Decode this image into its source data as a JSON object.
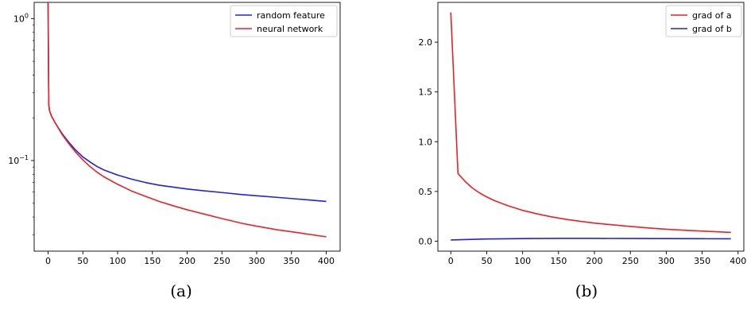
{
  "chart_data": [
    {
      "type": "line",
      "yscale": "log",
      "xlim": [
        -20,
        420
      ],
      "ylim": [
        0.023,
        1.3
      ],
      "x_ticks": [
        0,
        50,
        100,
        150,
        200,
        250,
        300,
        350,
        400
      ],
      "y_ticks": [
        {
          "value": 1.0,
          "base": "10",
          "exp": "0"
        },
        {
          "value": 0.1,
          "base": "10",
          "exp": "−1"
        }
      ],
      "legend_position": "top-right",
      "grid": false,
      "caption": "(a)",
      "series": [
        {
          "name": "random feature",
          "color": "#2020ee",
          "x": [
            0,
            1,
            2,
            5,
            10,
            20,
            30,
            40,
            50,
            60,
            70,
            80,
            100,
            120,
            140,
            160,
            180,
            200,
            220,
            250,
            280,
            300,
            330,
            360,
            400
          ],
          "y": [
            1.3,
            0.25,
            0.225,
            0.205,
            0.185,
            0.155,
            0.134,
            0.118,
            0.106,
            0.098,
            0.091,
            0.086,
            0.079,
            0.074,
            0.07,
            0.067,
            0.065,
            0.063,
            0.0615,
            0.0595,
            0.0575,
            0.0565,
            0.055,
            0.0535,
            0.0515
          ]
        },
        {
          "name": "neural network",
          "color": "#ee2020",
          "x": [
            0,
            1,
            2,
            5,
            10,
            20,
            30,
            40,
            50,
            60,
            70,
            80,
            100,
            120,
            140,
            160,
            180,
            200,
            220,
            250,
            280,
            300,
            330,
            360,
            400
          ],
          "y": [
            1.3,
            0.25,
            0.225,
            0.205,
            0.185,
            0.153,
            0.131,
            0.114,
            0.101,
            0.091,
            0.083,
            0.077,
            0.068,
            0.061,
            0.056,
            0.0515,
            0.048,
            0.045,
            0.0425,
            0.039,
            0.036,
            0.0345,
            0.0325,
            0.031,
            0.029
          ]
        }
      ]
    },
    {
      "type": "line",
      "xlim": [
        -18,
        408
      ],
      "ylim": [
        -0.1,
        2.4
      ],
      "x_ticks": [
        0,
        50,
        100,
        150,
        200,
        250,
        300,
        350,
        400
      ],
      "y_ticks": [
        "0.0",
        "0.5",
        "1.0",
        "1.5",
        "2.0"
      ],
      "legend_position": "top-right",
      "grid": false,
      "caption": "(b)",
      "series": [
        {
          "name": "grad of a",
          "color": "#ee2020",
          "x": [
            0,
            10,
            20,
            30,
            40,
            50,
            60,
            80,
            100,
            120,
            140,
            160,
            180,
            200,
            220,
            250,
            280,
            300,
            330,
            360,
            390
          ],
          "y": [
            2.3,
            0.68,
            0.6,
            0.535,
            0.485,
            0.445,
            0.41,
            0.355,
            0.31,
            0.275,
            0.245,
            0.22,
            0.2,
            0.182,
            0.168,
            0.148,
            0.13,
            0.12,
            0.108,
            0.098,
            0.088
          ]
        },
        {
          "name": "grad of b",
          "color": "#2020ee",
          "x": [
            0,
            20,
            50,
            100,
            150,
            200,
            250,
            300,
            350,
            390
          ],
          "y": [
            0.012,
            0.016,
            0.022,
            0.026,
            0.028,
            0.028,
            0.027,
            0.026,
            0.025,
            0.024
          ]
        }
      ]
    }
  ]
}
